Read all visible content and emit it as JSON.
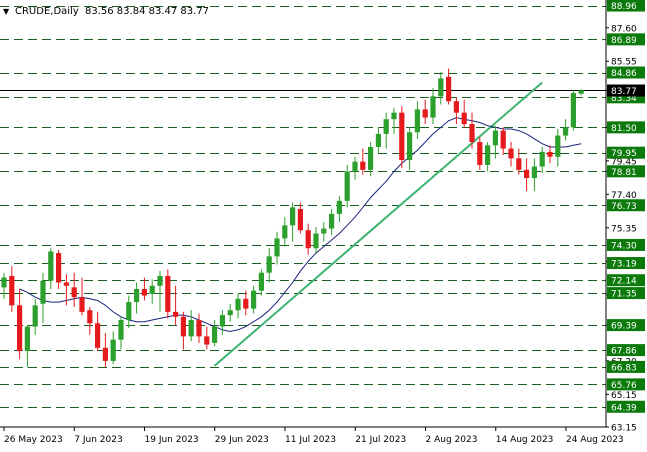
{
  "header": {
    "symbol": "CRUDE,Daily",
    "ohlc": "83.56 83.84 83.47 83.77",
    "marker": "▼"
  },
  "colors": {
    "bull": "#2ca02c",
    "bear": "#e41a1c",
    "level_line": "#1b5e20",
    "trendline": "#3cb371",
    "moving_average": "#1a237e",
    "price_axis_box": "#0b7a0b",
    "current_price_line": "#000000"
  },
  "chart_data": {
    "type": "candlestick",
    "title": "CRUDE,Daily",
    "ylim": [
      63.15,
      89.3
    ],
    "y_tick_labels": [
      "87.60",
      "85.55",
      "83.77",
      "81.50",
      "79.45",
      "78.81",
      "77.40",
      "75.35",
      "73.30",
      "71.25",
      "69.39",
      "67.20",
      "65.15",
      "63.15"
    ],
    "x_tick_labels": [
      "26 May 2023",
      "7 Jun 2023",
      "19 Jun 2023",
      "29 Jun 2023",
      "11 Jul 2023",
      "21 Jul 2023",
      "2 Aug 2023",
      "14 Aug 2023",
      "24 Aug 2023"
    ],
    "horizontal_levels": [
      88.96,
      86.89,
      84.86,
      83.34,
      81.5,
      79.95,
      78.81,
      76.73,
      74.3,
      73.19,
      72.14,
      71.35,
      69.39,
      67.86,
      66.83,
      65.76,
      64.39
    ],
    "current_price": 83.77,
    "candles": [
      {
        "o": 71.7,
        "h": 72.6,
        "l": 71.0,
        "c": 72.3
      },
      {
        "o": 72.4,
        "h": 73.0,
        "l": 70.2,
        "c": 70.6
      },
      {
        "o": 70.6,
        "h": 71.6,
        "l": 67.3,
        "c": 67.8
      },
      {
        "o": 67.8,
        "h": 69.4,
        "l": 66.8,
        "c": 69.3
      },
      {
        "o": 69.3,
        "h": 71.0,
        "l": 68.8,
        "c": 70.6
      },
      {
        "o": 70.7,
        "h": 72.6,
        "l": 69.5,
        "c": 72.1
      },
      {
        "o": 72.1,
        "h": 74.1,
        "l": 71.6,
        "c": 73.9
      },
      {
        "o": 73.8,
        "h": 74.0,
        "l": 71.6,
        "c": 72.0
      },
      {
        "o": 72.0,
        "h": 72.5,
        "l": 70.6,
        "c": 71.8
      },
      {
        "o": 71.7,
        "h": 72.6,
        "l": 70.5,
        "c": 71.1
      },
      {
        "o": 71.1,
        "h": 72.3,
        "l": 70.0,
        "c": 70.2
      },
      {
        "o": 70.3,
        "h": 70.5,
        "l": 68.8,
        "c": 69.5
      },
      {
        "o": 69.5,
        "h": 70.2,
        "l": 67.8,
        "c": 68.0
      },
      {
        "o": 68.0,
        "h": 68.9,
        "l": 66.8,
        "c": 67.2
      },
      {
        "o": 67.2,
        "h": 69.0,
        "l": 67.0,
        "c": 68.5
      },
      {
        "o": 68.5,
        "h": 69.9,
        "l": 67.9,
        "c": 69.7
      },
      {
        "o": 69.7,
        "h": 71.2,
        "l": 69.2,
        "c": 70.8
      },
      {
        "o": 70.8,
        "h": 72.0,
        "l": 70.1,
        "c": 71.6
      },
      {
        "o": 71.6,
        "h": 72.3,
        "l": 70.9,
        "c": 71.2
      },
      {
        "o": 71.3,
        "h": 72.2,
        "l": 70.7,
        "c": 71.8
      },
      {
        "o": 71.8,
        "h": 72.7,
        "l": 70.2,
        "c": 72.4
      },
      {
        "o": 72.4,
        "h": 72.8,
        "l": 69.8,
        "c": 70.2
      },
      {
        "o": 70.2,
        "h": 71.8,
        "l": 69.4,
        "c": 69.9
      },
      {
        "o": 69.9,
        "h": 70.2,
        "l": 67.9,
        "c": 68.7
      },
      {
        "o": 68.7,
        "h": 70.3,
        "l": 68.4,
        "c": 69.7
      },
      {
        "o": 69.7,
        "h": 70.1,
        "l": 68.3,
        "c": 68.7
      },
      {
        "o": 68.7,
        "h": 69.3,
        "l": 67.9,
        "c": 68.2
      },
      {
        "o": 68.3,
        "h": 69.7,
        "l": 68.1,
        "c": 69.3
      },
      {
        "o": 69.3,
        "h": 70.3,
        "l": 68.8,
        "c": 70.0
      },
      {
        "o": 70.0,
        "h": 70.7,
        "l": 69.6,
        "c": 70.3
      },
      {
        "o": 70.3,
        "h": 71.3,
        "l": 69.8,
        "c": 71.0
      },
      {
        "o": 71.0,
        "h": 71.5,
        "l": 70.0,
        "c": 70.4
      },
      {
        "o": 70.4,
        "h": 71.8,
        "l": 70.1,
        "c": 71.5
      },
      {
        "o": 71.5,
        "h": 72.8,
        "l": 71.2,
        "c": 72.6
      },
      {
        "o": 72.6,
        "h": 74.1,
        "l": 72.0,
        "c": 73.6
      },
      {
        "o": 73.6,
        "h": 75.1,
        "l": 73.1,
        "c": 74.7
      },
      {
        "o": 74.7,
        "h": 76.0,
        "l": 74.2,
        "c": 75.5
      },
      {
        "o": 75.5,
        "h": 76.9,
        "l": 74.5,
        "c": 76.6
      },
      {
        "o": 76.5,
        "h": 76.9,
        "l": 75.0,
        "c": 75.2
      },
      {
        "o": 75.2,
        "h": 75.6,
        "l": 73.7,
        "c": 74.1
      },
      {
        "o": 74.1,
        "h": 75.4,
        "l": 73.8,
        "c": 75.0
      },
      {
        "o": 75.0,
        "h": 75.7,
        "l": 74.5,
        "c": 75.3
      },
      {
        "o": 75.3,
        "h": 76.5,
        "l": 74.9,
        "c": 76.2
      },
      {
        "o": 76.2,
        "h": 77.3,
        "l": 75.7,
        "c": 77.0
      },
      {
        "o": 77.0,
        "h": 79.2,
        "l": 76.6,
        "c": 78.8
      },
      {
        "o": 78.8,
        "h": 79.7,
        "l": 78.3,
        "c": 79.4
      },
      {
        "o": 79.4,
        "h": 80.2,
        "l": 78.6,
        "c": 78.9
      },
      {
        "o": 78.9,
        "h": 80.6,
        "l": 78.5,
        "c": 80.3
      },
      {
        "o": 80.3,
        "h": 81.5,
        "l": 79.9,
        "c": 81.1
      },
      {
        "o": 81.1,
        "h": 82.4,
        "l": 80.2,
        "c": 82.0
      },
      {
        "o": 82.0,
        "h": 82.7,
        "l": 81.1,
        "c": 82.4
      },
      {
        "o": 82.4,
        "h": 82.8,
        "l": 79.0,
        "c": 79.5
      },
      {
        "o": 79.5,
        "h": 81.5,
        "l": 78.9,
        "c": 81.2
      },
      {
        "o": 81.2,
        "h": 83.1,
        "l": 80.8,
        "c": 82.6
      },
      {
        "o": 82.6,
        "h": 83.2,
        "l": 81.7,
        "c": 82.1
      },
      {
        "o": 82.1,
        "h": 83.9,
        "l": 81.7,
        "c": 83.4
      },
      {
        "o": 83.4,
        "h": 84.9,
        "l": 82.9,
        "c": 84.5
      },
      {
        "o": 84.6,
        "h": 85.1,
        "l": 82.9,
        "c": 83.1
      },
      {
        "o": 83.1,
        "h": 83.3,
        "l": 81.7,
        "c": 82.4
      },
      {
        "o": 82.4,
        "h": 83.2,
        "l": 81.5,
        "c": 81.7
      },
      {
        "o": 81.7,
        "h": 82.4,
        "l": 80.2,
        "c": 80.6
      },
      {
        "o": 80.6,
        "h": 80.9,
        "l": 78.9,
        "c": 79.2
      },
      {
        "o": 79.2,
        "h": 80.6,
        "l": 78.8,
        "c": 80.4
      },
      {
        "o": 80.4,
        "h": 81.6,
        "l": 79.6,
        "c": 81.3
      },
      {
        "o": 81.3,
        "h": 81.5,
        "l": 79.8,
        "c": 80.2
      },
      {
        "o": 80.2,
        "h": 80.6,
        "l": 79.1,
        "c": 79.6
      },
      {
        "o": 79.6,
        "h": 80.2,
        "l": 78.6,
        "c": 78.9
      },
      {
        "o": 78.9,
        "h": 79.6,
        "l": 77.6,
        "c": 78.4
      },
      {
        "o": 78.4,
        "h": 79.6,
        "l": 77.6,
        "c": 79.1
      },
      {
        "o": 79.1,
        "h": 80.3,
        "l": 78.7,
        "c": 80.0
      },
      {
        "o": 80.0,
        "h": 80.4,
        "l": 79.3,
        "c": 79.7
      },
      {
        "o": 79.7,
        "h": 81.4,
        "l": 79.1,
        "c": 81.0
      },
      {
        "o": 81.0,
        "h": 82.0,
        "l": 80.7,
        "c": 81.5
      },
      {
        "o": 81.5,
        "h": 83.8,
        "l": 81.3,
        "c": 83.6
      },
      {
        "o": 83.56,
        "h": 83.84,
        "l": 83.47,
        "c": 83.77
      }
    ],
    "moving_average": [
      71.6,
      71.4,
      71.1,
      70.9,
      70.8,
      70.8,
      70.9,
      71.0,
      71.1,
      71.0,
      70.9,
      70.6,
      70.2,
      69.9,
      69.7,
      69.6,
      69.6,
      69.7,
      69.8,
      69.9,
      70.0,
      70.0,
      69.9,
      69.7,
      69.5,
      69.3,
      69.1,
      69.0,
      69.1,
      69.3,
      69.6,
      69.9,
      70.3,
      70.8,
      71.4,
      72.0,
      72.7,
      73.3,
      73.8,
      74.2,
      74.6,
      75.0,
      75.5,
      76.0,
      76.6,
      77.2,
      77.7,
      78.2,
      78.8,
      79.3,
      79.7,
      80.1,
      80.6,
      81.1,
      81.5,
      81.9,
      82.1,
      82.0,
      81.9,
      81.8,
      81.6,
      81.5,
      81.4,
      81.4,
      81.3,
      81.1,
      80.8,
      80.5,
      80.3,
      80.3,
      80.3,
      80.4,
      80.5
    ],
    "trendline": {
      "start": {
        "index": 27,
        "value": 66.9
      },
      "end": {
        "index": 69,
        "value": 84.25
      }
    }
  }
}
